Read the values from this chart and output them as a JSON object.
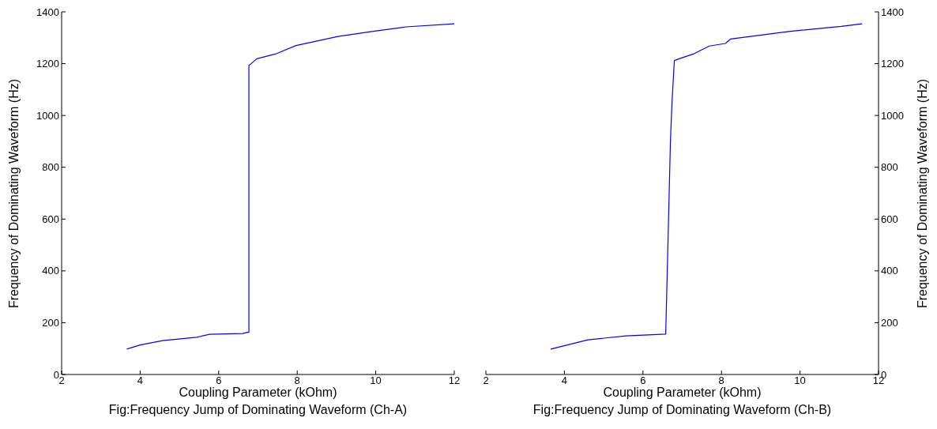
{
  "chart_data": [
    {
      "type": "line",
      "xlabel": "Coupling Parameter (kOhm)",
      "ylabel": "Frequency of Dominating Waveform (Hz)",
      "annotations": [
        "Fig:Frequency Jump of Dominating Waveform (Ch-A)"
      ],
      "xlim": [
        2,
        12
      ],
      "xticks": [
        2,
        4,
        6,
        8,
        10,
        12
      ],
      "ylim": [
        0,
        1400
      ],
      "yticks": [
        0,
        200,
        400,
        600,
        800,
        1000,
        1200,
        1400
      ],
      "marker": "none",
      "line_style": "solid",
      "series": [
        {
          "color": "#0000ff",
          "x": [
            3.66,
            4,
            4.57,
            5.44,
            5.77,
            6.61,
            6.74,
            6.77,
            6.77,
            6.97,
            7.44,
            7.97,
            9.04,
            9.9,
            10.77,
            12
          ],
          "values": [
            98,
            114,
            131,
            144,
            155,
            158,
            163,
            163,
            1193,
            1219,
            1237,
            1270,
            1305,
            1324,
            1342,
            1354
          ]
        }
      ]
    },
    {
      "type": "line",
      "xlabel": "Coupling Parameter (kOhm)",
      "y2label": "Frequency of Dominating Waveform (Hz)",
      "annotations": [
        "Fig:Frequency Jump of Dominating Waveform (Ch-B)"
      ],
      "xlim": [
        2,
        12
      ],
      "xticks": [
        2,
        4,
        6,
        8,
        10,
        12
      ],
      "y2lim": [
        0,
        1400
      ],
      "y2ticks": [
        0,
        200,
        400,
        600,
        800,
        1000,
        1200,
        1400
      ],
      "marker": "none",
      "line_style": "solid",
      "series": [
        {
          "color": "#0000ff",
          "axis": "y2",
          "x": [
            3.65,
            4.6,
            5.57,
            6.58,
            6.62,
            6.66,
            6.7,
            6.74,
            6.8,
            6.98,
            7.28,
            7.69,
            8.1,
            8.23,
            9.71,
            11.05,
            11.58
          ],
          "values": [
            98,
            134,
            149,
            156,
            400,
            650,
            900,
            1050,
            1212,
            1222,
            1237,
            1268,
            1278,
            1295,
            1324,
            1344,
            1354
          ]
        }
      ]
    }
  ]
}
